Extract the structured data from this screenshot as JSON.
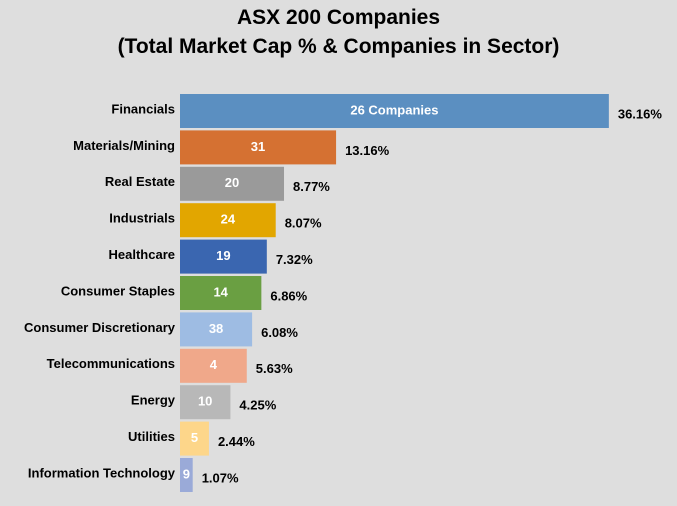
{
  "chart_data": {
    "type": "bar",
    "orientation": "horizontal",
    "title": "ASX 200 Companies",
    "subtitle": "(Total Market Cap % & Companies in Sector)",
    "categories": [
      "Financials",
      "Materials/Mining",
      "Real Estate",
      "Industrials",
      "Healthcare",
      "Consumer Staples",
      "Consumer Discretionary",
      "Telecommunications",
      "Energy",
      "Utilities",
      "Information Technology"
    ],
    "values": [
      36.16,
      13.16,
      8.77,
      8.07,
      7.32,
      6.86,
      6.08,
      5.63,
      4.25,
      2.44,
      1.07
    ],
    "value_labels": [
      "36.16%",
      "13.16%",
      "8.77%",
      "8.07%",
      "7.32%",
      "6.86%",
      "6.08%",
      "5.63%",
      "4.25%",
      "2.44%",
      "1.07%"
    ],
    "bar_labels": [
      "26 Companies",
      "31",
      "20",
      "24",
      "19",
      "14",
      "38",
      "4",
      "10",
      "5",
      "9"
    ],
    "colors": [
      "#5b8fc1",
      "#d57132",
      "#9a9a9a",
      "#e2a600",
      "#3a66b0",
      "#6a9f42",
      "#9ebce3",
      "#f0a88a",
      "#b8b8b8",
      "#fdd68a",
      "#9aaad8"
    ],
    "grid": false,
    "legend": "none"
  }
}
